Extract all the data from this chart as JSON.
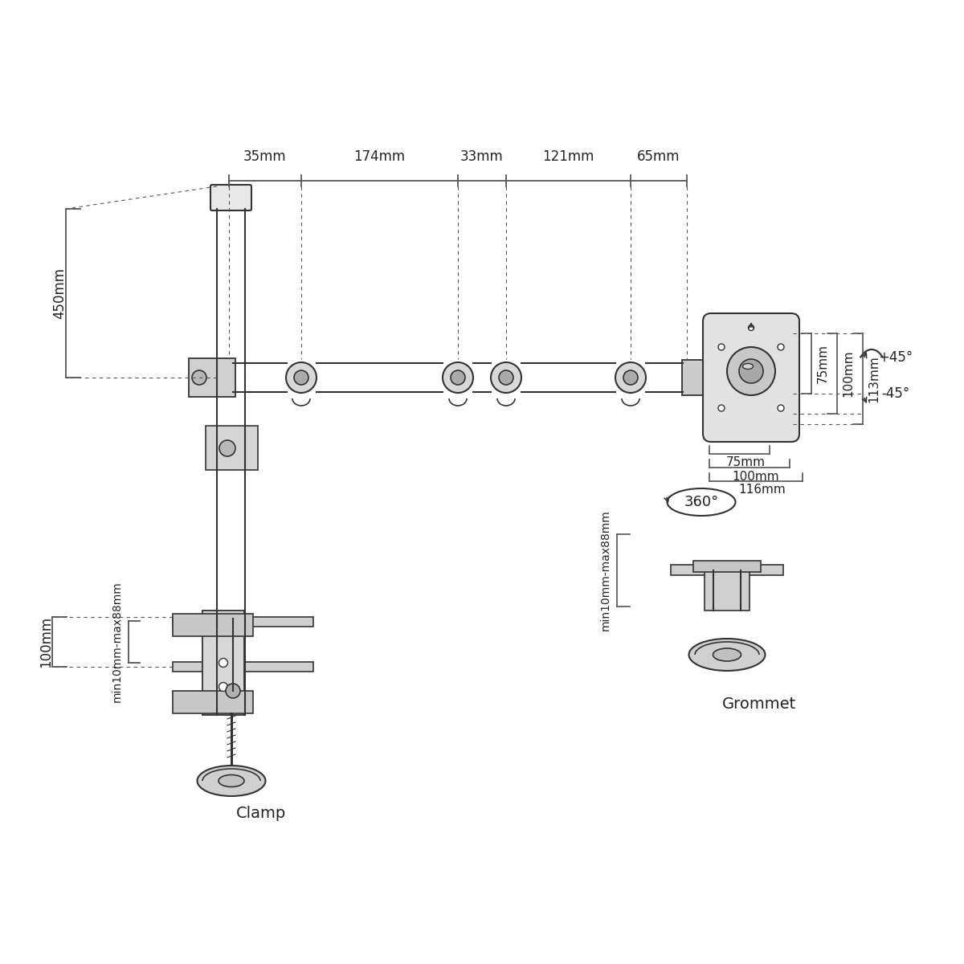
{
  "bg_color": "#ffffff",
  "line_color": "#333333",
  "dim_line_color": "#555555",
  "text_color": "#222222",
  "top_dim_labels": [
    "35mm",
    "174mm",
    "33mm",
    "121mm",
    "65mm"
  ],
  "left_dim_450": "450mm",
  "left_dim_100": "100mm",
  "left_dim_min": "min10mm-max88mm",
  "right_dim_v": [
    "75mm",
    "100mm",
    "113mm"
  ],
  "right_dim_h": [
    "75mm",
    "100mm",
    "116mm"
  ],
  "angle_plus": "+45°",
  "angle_minus": "-45°",
  "rotation_label": "360°",
  "label_clamp": "Clamp",
  "label_grommet": "Grommet",
  "grommet_dim": "min10mm-max88mm"
}
